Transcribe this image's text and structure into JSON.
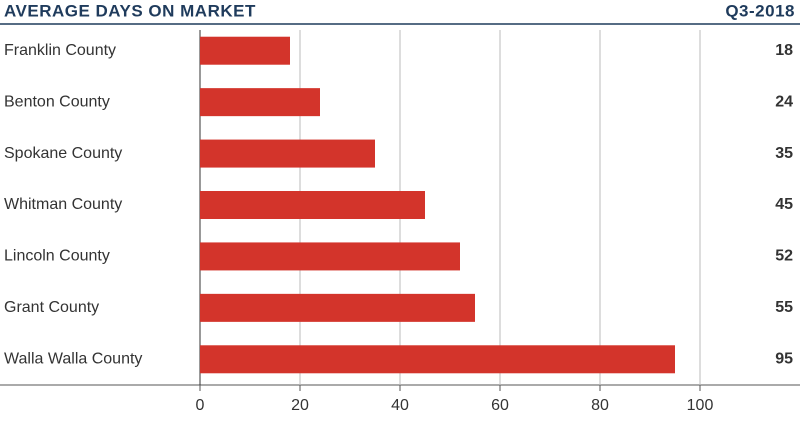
{
  "chart_data": {
    "type": "bar",
    "orientation": "horizontal",
    "title": "AVERAGE DAYS ON MARKET",
    "subtitle": "Q3-2018",
    "categories": [
      "Franklin County",
      "Benton County",
      "Spokane County",
      "Whitman County",
      "Lincoln County",
      "Grant County",
      "Walla Walla County"
    ],
    "values": [
      18,
      24,
      35,
      45,
      52,
      55,
      95
    ],
    "color": "#d3342b",
    "xlim": [
      0,
      100
    ],
    "xticks": [
      0,
      20,
      40,
      60,
      80,
      100
    ],
    "grid": true
  }
}
